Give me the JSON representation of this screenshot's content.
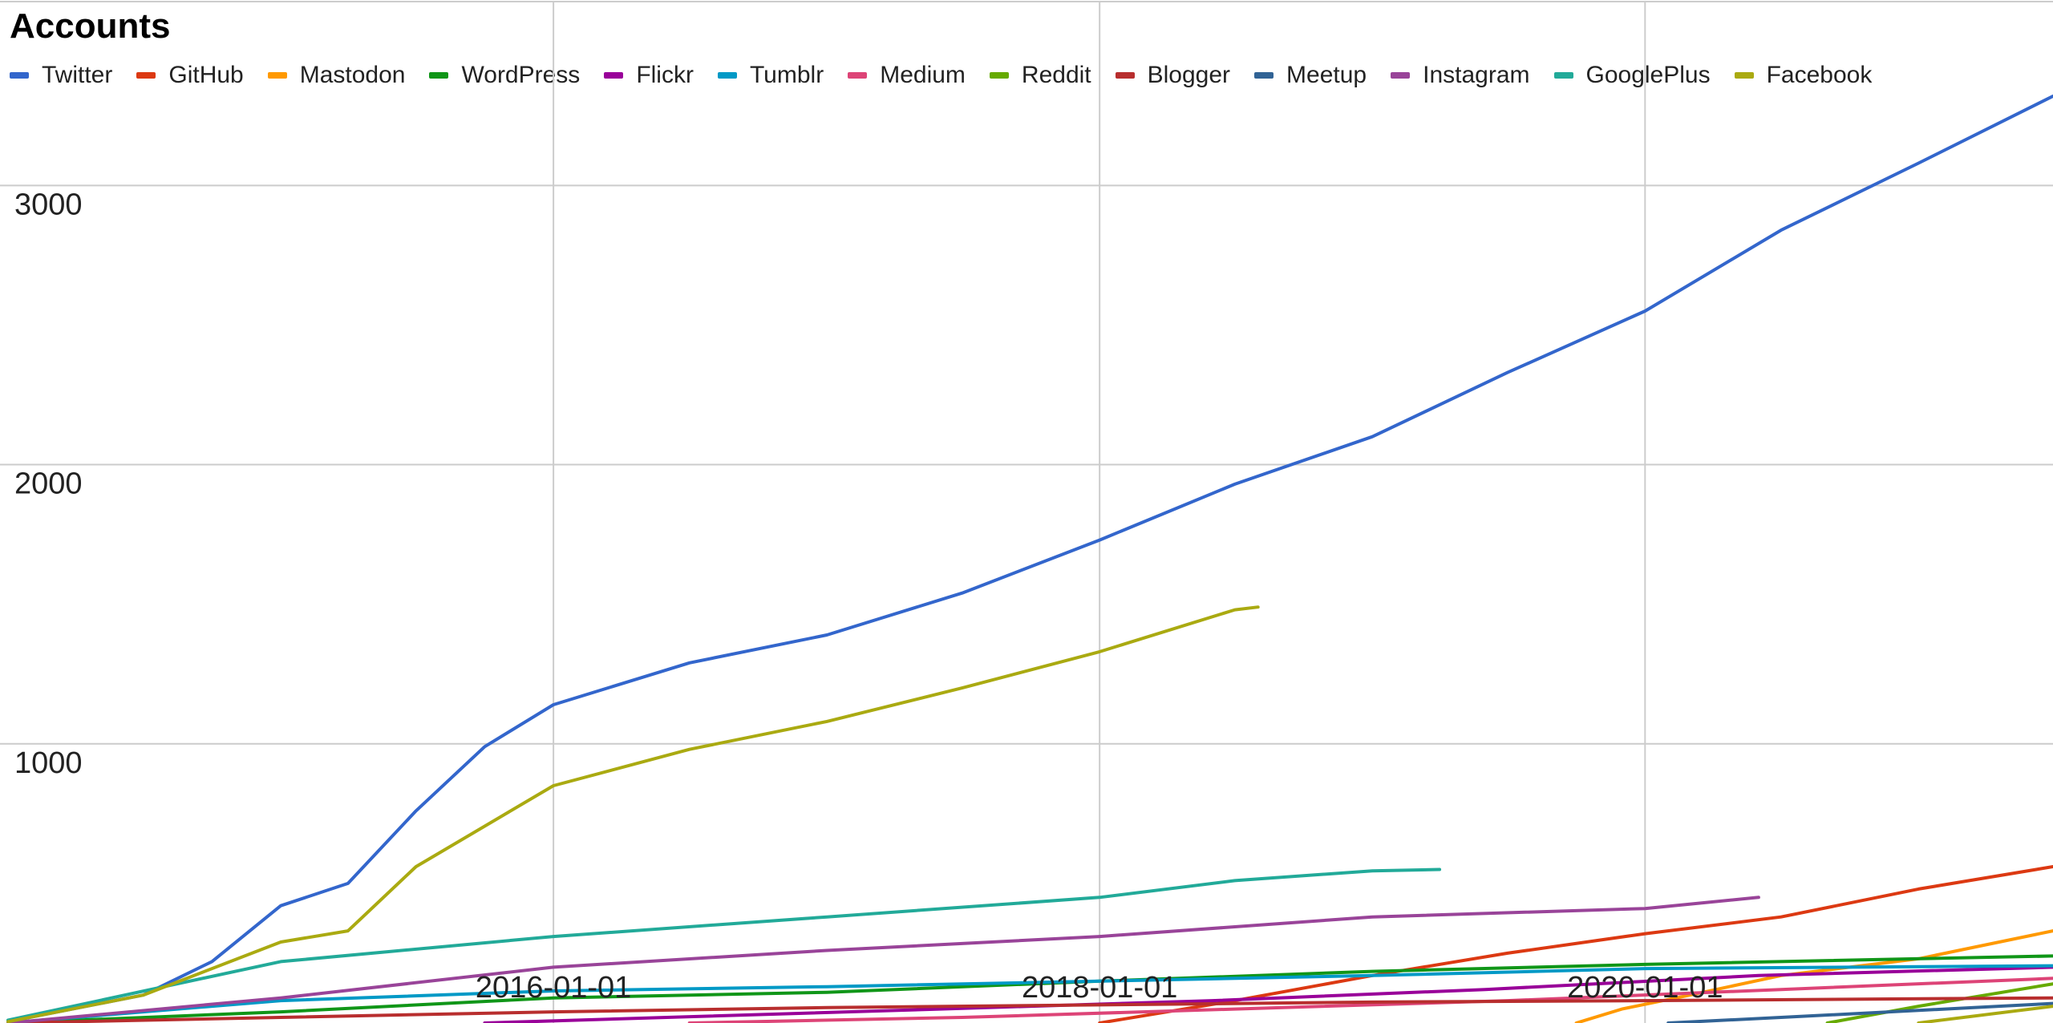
{
  "chart_data": {
    "type": "line",
    "title": "Accounts",
    "xlabel": "",
    "ylabel": "",
    "xlim": [
      "2014-01-01",
      "2021-06-30"
    ],
    "ylim": [
      0,
      3650
    ],
    "y_ticks": [
      1000,
      2000,
      3000
    ],
    "x_ticks": [
      "2016-01-01",
      "2018-01-01",
      "2020-01-01"
    ],
    "grid": true,
    "legend_position": "top-left",
    "series": [
      {
        "name": "Twitter",
        "color": "#3366cc",
        "points": [
          [
            "2014-01-01",
            5
          ],
          [
            "2014-07-01",
            100
          ],
          [
            "2014-10-01",
            220
          ],
          [
            "2015-01-01",
            420
          ],
          [
            "2015-04-01",
            500
          ],
          [
            "2015-07-01",
            760
          ],
          [
            "2015-10-01",
            990
          ],
          [
            "2016-01-01",
            1140
          ],
          [
            "2016-07-01",
            1290
          ],
          [
            "2017-01-01",
            1390
          ],
          [
            "2017-07-01",
            1540
          ],
          [
            "2018-01-01",
            1730
          ],
          [
            "2018-07-01",
            1930
          ],
          [
            "2019-01-01",
            2100
          ],
          [
            "2019-07-01",
            2330
          ],
          [
            "2020-01-01",
            2550
          ],
          [
            "2020-07-01",
            2840
          ],
          [
            "2021-01-01",
            3080
          ],
          [
            "2021-06-30",
            3320
          ]
        ]
      },
      {
        "name": "GitHub",
        "color": "#dc3912",
        "points": [
          [
            "2018-01-01",
            0
          ],
          [
            "2018-07-01",
            80
          ],
          [
            "2019-01-01",
            170
          ],
          [
            "2019-07-01",
            250
          ],
          [
            "2020-01-01",
            320
          ],
          [
            "2020-07-01",
            380
          ],
          [
            "2021-01-01",
            480
          ],
          [
            "2021-06-30",
            560
          ]
        ]
      },
      {
        "name": "Mastodon",
        "color": "#ff9900",
        "points": [
          [
            "2019-10-01",
            0
          ],
          [
            "2019-12-01",
            50
          ],
          [
            "2020-03-01",
            100
          ],
          [
            "2020-07-01",
            170
          ],
          [
            "2021-01-01",
            230
          ],
          [
            "2021-06-30",
            330
          ]
        ]
      },
      {
        "name": "WordPress",
        "color": "#109618",
        "points": [
          [
            "2014-01-01",
            0
          ],
          [
            "2015-01-01",
            40
          ],
          [
            "2016-01-01",
            90
          ],
          [
            "2017-01-01",
            110
          ],
          [
            "2018-01-01",
            150
          ],
          [
            "2019-01-01",
            185
          ],
          [
            "2020-01-01",
            210
          ],
          [
            "2021-06-30",
            240
          ]
        ]
      },
      {
        "name": "Flickr",
        "color": "#990099",
        "points": [
          [
            "2015-10-01",
            0
          ],
          [
            "2016-06-01",
            20
          ],
          [
            "2017-06-01",
            50
          ],
          [
            "2018-06-01",
            80
          ],
          [
            "2019-06-01",
            120
          ],
          [
            "2020-06-01",
            170
          ],
          [
            "2021-06-30",
            200
          ]
        ]
      },
      {
        "name": "Tumblr",
        "color": "#0099c6",
        "points": [
          [
            "2014-01-01",
            0
          ],
          [
            "2015-01-01",
            80
          ],
          [
            "2016-01-01",
            115
          ],
          [
            "2017-01-01",
            130
          ],
          [
            "2018-01-01",
            150
          ],
          [
            "2019-01-01",
            170
          ],
          [
            "2020-01-01",
            195
          ],
          [
            "2021-06-30",
            205
          ]
        ]
      },
      {
        "name": "Medium",
        "color": "#dd4477",
        "points": [
          [
            "2016-07-01",
            0
          ],
          [
            "2017-07-01",
            20
          ],
          [
            "2018-07-01",
            50
          ],
          [
            "2019-07-01",
            80
          ],
          [
            "2020-07-01",
            120
          ],
          [
            "2021-06-30",
            160
          ]
        ]
      },
      {
        "name": "Reddit",
        "color": "#66aa00",
        "points": [
          [
            "2020-09-01",
            0
          ],
          [
            "2021-01-01",
            60
          ],
          [
            "2021-06-30",
            140
          ]
        ]
      },
      {
        "name": "Blogger",
        "color": "#b82e2e",
        "points": [
          [
            "2014-01-01",
            0
          ],
          [
            "2015-01-01",
            20
          ],
          [
            "2016-01-01",
            40
          ],
          [
            "2017-01-01",
            55
          ],
          [
            "2018-01-01",
            65
          ],
          [
            "2019-01-01",
            75
          ],
          [
            "2020-01-01",
            80
          ],
          [
            "2021-06-30",
            90
          ]
        ]
      },
      {
        "name": "Meetup",
        "color": "#316395",
        "points": [
          [
            "2020-02-01",
            0
          ],
          [
            "2020-07-01",
            20
          ],
          [
            "2021-01-01",
            45
          ],
          [
            "2021-06-30",
            70
          ]
        ]
      },
      {
        "name": "Instagram",
        "color": "#994499",
        "points": [
          [
            "2014-01-01",
            0
          ],
          [
            "2015-01-01",
            90
          ],
          [
            "2016-01-01",
            200
          ],
          [
            "2017-01-01",
            260
          ],
          [
            "2018-01-01",
            310
          ],
          [
            "2019-01-01",
            380
          ],
          [
            "2020-01-01",
            410
          ],
          [
            "2020-06-01",
            450
          ]
        ]
      },
      {
        "name": "GooglePlus",
        "color": "#22aa99",
        "points": [
          [
            "2014-01-01",
            10
          ],
          [
            "2015-01-01",
            220
          ],
          [
            "2016-01-01",
            310
          ],
          [
            "2017-01-01",
            380
          ],
          [
            "2018-01-01",
            450
          ],
          [
            "2018-07-01",
            510
          ],
          [
            "2019-01-01",
            545
          ],
          [
            "2019-04-01",
            550
          ]
        ]
      },
      {
        "name": "Facebook",
        "color": "#aaaa11",
        "points": [
          [
            "2014-01-01",
            5
          ],
          [
            "2014-07-01",
            100
          ],
          [
            "2015-01-01",
            290
          ],
          [
            "2015-04-01",
            330
          ],
          [
            "2015-07-01",
            560
          ],
          [
            "2016-01-01",
            850
          ],
          [
            "2016-07-01",
            980
          ],
          [
            "2017-01-01",
            1080
          ],
          [
            "2017-07-01",
            1200
          ],
          [
            "2018-01-01",
            1330
          ],
          [
            "2018-07-01",
            1480
          ],
          [
            "2018-08-01",
            1490
          ]
        ]
      },
      {
        "name": "Facebook",
        "color": "#aaaa11",
        "points": [
          [
            "2021-01-01",
            0
          ],
          [
            "2021-06-30",
            60
          ]
        ]
      }
    ]
  }
}
